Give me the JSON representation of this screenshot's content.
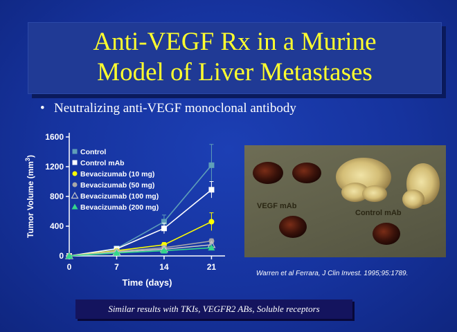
{
  "slide": {
    "title_line1": "Anti-VEGF Rx in a Murine",
    "title_line2": "Model of Liver Metastases",
    "bullet": "Neutralizing anti-VEGF monoclonal antibody",
    "bullet_symbol": "•",
    "photo_labels": {
      "left": "VEGF mAb",
      "right": "Control mAb"
    },
    "citation": "Warren et al Ferrara, J Clin Invest. 1995;95:1789.",
    "footer": "Similar results with TKIs, VEGFR2 ABs, Soluble receptors"
  },
  "colors": {
    "title_text": "#ffff2e",
    "background": "#1a3ba8",
    "title_box": "#203a95",
    "footer_box": "#14145e"
  },
  "chart_data": {
    "type": "line",
    "x": [
      0,
      7,
      14,
      21
    ],
    "xlabel": "Time (days)",
    "ylabel": "Tumor Volume (mm³)",
    "ylabel_base": "Tumor Volume (mm",
    "ylabel_sup": "3",
    "ylabel_close": ")",
    "xticks": [
      "0",
      "7",
      "14",
      "21"
    ],
    "yticks": [
      "0",
      "400",
      "800",
      "1200",
      "1600"
    ],
    "xlim": [
      0,
      23
    ],
    "ylim": [
      0,
      1600
    ],
    "legend_position": "top-left",
    "series": [
      {
        "name": "Control",
        "marker": "square",
        "color": "#5f9fb8",
        "values": [
          0,
          100,
          460,
          1220
        ],
        "err": [
          0,
          20,
          90,
          280
        ]
      },
      {
        "name": "Control mAb",
        "marker": "square",
        "color": "#ffffff",
        "values": [
          0,
          95,
          370,
          890
        ],
        "err": [
          0,
          20,
          70,
          110
        ]
      },
      {
        "name": "Bevacizumab (10 mg)",
        "marker": "circle",
        "color": "#ffff00",
        "values": [
          0,
          70,
          150,
          460
        ],
        "err": [
          0,
          10,
          30,
          120
        ]
      },
      {
        "name": "Bevacizumab (50 mg)",
        "marker": "circle",
        "color": "#a8a8a8",
        "values": [
          0,
          60,
          110,
          200
        ],
        "err": [
          0,
          10,
          20,
          30
        ]
      },
      {
        "name": "Bevacizumab (100 mg)",
        "marker": "triangle-open",
        "color": "#c8c8c8",
        "values": [
          0,
          50,
          90,
          150
        ],
        "err": [
          0,
          8,
          15,
          20
        ]
      },
      {
        "name": "Bevacizumab (200 mg)",
        "marker": "triangle",
        "color": "#34d68a",
        "values": [
          0,
          40,
          70,
          110
        ],
        "err": [
          0,
          8,
          12,
          15
        ]
      }
    ]
  }
}
